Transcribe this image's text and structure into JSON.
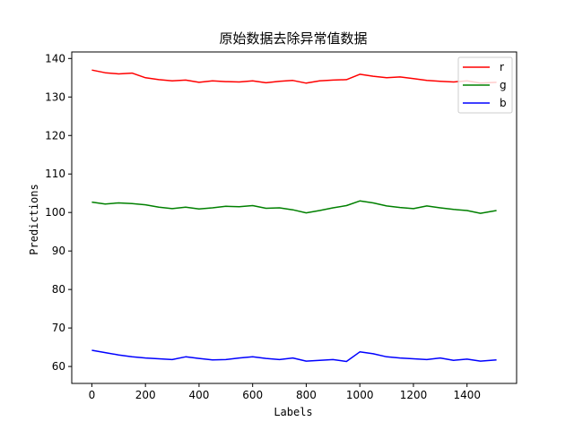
{
  "chart_data": {
    "type": "line",
    "title": "原始数据去除异常值数据",
    "xlabel": "Labels",
    "ylabel": "Predictions",
    "xlim": [
      -75,
      1585
    ],
    "ylim": [
      55.6,
      141.7
    ],
    "xticks": [
      0,
      200,
      400,
      600,
      800,
      1000,
      1200,
      1400
    ],
    "yticks": [
      60,
      70,
      80,
      90,
      100,
      110,
      120,
      130,
      140
    ],
    "grid": false,
    "legend_position": "top-right",
    "x": [
      0,
      50,
      100,
      150,
      200,
      250,
      300,
      350,
      400,
      450,
      500,
      550,
      600,
      650,
      700,
      750,
      800,
      850,
      900,
      950,
      1000,
      1050,
      1100,
      1150,
      1200,
      1250,
      1300,
      1350,
      1400,
      1450,
      1510
    ],
    "series": [
      {
        "name": "r",
        "color": "#ff0000",
        "values": [
          137.0,
          136.3,
          136.0,
          136.2,
          135.0,
          134.5,
          134.2,
          134.4,
          133.8,
          134.2,
          134.0,
          133.9,
          134.2,
          133.7,
          134.1,
          134.3,
          133.6,
          134.2,
          134.4,
          134.5,
          135.9,
          135.4,
          135.0,
          135.2,
          134.8,
          134.3,
          134.1,
          133.9,
          134.2,
          133.6,
          133.8
        ]
      },
      {
        "name": "g",
        "color": "#008000",
        "values": [
          102.7,
          102.2,
          102.5,
          102.3,
          102.0,
          101.4,
          101.0,
          101.4,
          100.9,
          101.2,
          101.6,
          101.5,
          101.8,
          101.1,
          101.2,
          100.7,
          99.9,
          100.5,
          101.2,
          101.8,
          103.0,
          102.5,
          101.7,
          101.3,
          101.0,
          101.7,
          101.2,
          100.8,
          100.5,
          99.8,
          100.5
        ]
      },
      {
        "name": "b",
        "color": "#0000ff",
        "values": [
          64.2,
          63.6,
          63.0,
          62.5,
          62.2,
          62.0,
          61.8,
          62.5,
          62.1,
          61.7,
          61.8,
          62.2,
          62.5,
          62.1,
          61.8,
          62.2,
          61.4,
          61.6,
          61.8,
          61.3,
          63.8,
          63.3,
          62.5,
          62.2,
          62.0,
          61.8,
          62.2,
          61.6,
          61.9,
          61.4,
          61.7
        ]
      }
    ]
  }
}
